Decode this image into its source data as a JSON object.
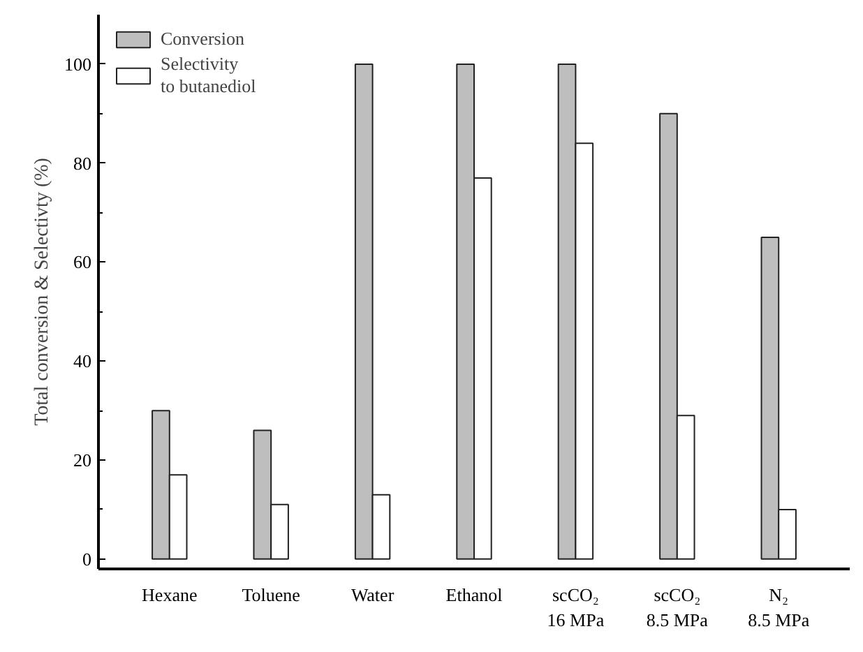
{
  "chart_data": {
    "type": "bar",
    "ylabel": "Total conversion & Selectivty (%)",
    "categories": [
      "Hexane",
      "Toluene",
      "Water",
      "Ethanol",
      "scCO₂\n16 MPa",
      "scCO₂\n8.5 MPa",
      "N₂\n8.5 MPa"
    ],
    "series": [
      {
        "name": "Conversion",
        "color": "#bebebe",
        "values": [
          30,
          26,
          100,
          100,
          100,
          90,
          65
        ]
      },
      {
        "name": "Selectivity\nto butanediol",
        "color": "#ffffff",
        "values": [
          17,
          11,
          13,
          77,
          84,
          29,
          10
        ]
      }
    ],
    "ylim": [
      -2,
      110
    ],
    "yticks": [
      0,
      20,
      40,
      60,
      80,
      100
    ],
    "grid": false,
    "legend": "top left"
  }
}
